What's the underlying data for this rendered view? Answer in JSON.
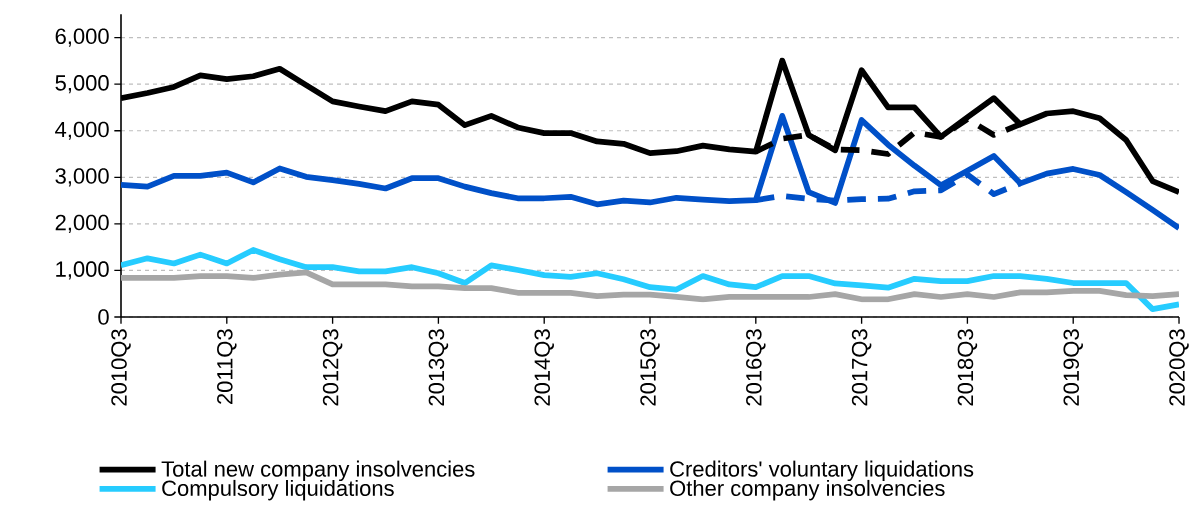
{
  "chart_data": {
    "type": "line",
    "categories": [
      "2010Q3",
      null,
      null,
      null,
      "2011Q3",
      null,
      null,
      null,
      "2012Q3",
      null,
      null,
      null,
      "2013Q3",
      null,
      null,
      null,
      "2014Q3",
      null,
      null,
      null,
      "2015Q3",
      null,
      null,
      null,
      "2016Q3",
      null,
      null,
      null,
      "2017Q3",
      null,
      null,
      null,
      "2018Q3",
      null,
      null,
      null,
      "2019Q3",
      null,
      null,
      null,
      "2020Q3"
    ],
    "series": [
      {
        "name": "Total new company insolvencies",
        "color": "#000000",
        "values": [
          4700,
          4810,
          4940,
          5190,
          5110,
          5170,
          5330,
          4980,
          4630,
          4520,
          4420,
          4630,
          4560,
          4120,
          4320,
          4070,
          3950,
          3950,
          3770,
          3720,
          3520,
          3560,
          3680,
          3600,
          3550,
          5510,
          3910,
          3580,
          5300,
          4500,
          4500,
          3870,
          4290,
          4700,
          4140,
          4370,
          4420,
          4270,
          3800,
          2920,
          2680
        ]
      },
      {
        "name": "Creditors' voluntary liquidations",
        "color": "#0050c8",
        "values": [
          2840,
          2800,
          3030,
          3030,
          3100,
          2890,
          3190,
          3010,
          2940,
          2860,
          2760,
          2980,
          2980,
          2800,
          2660,
          2550,
          2550,
          2580,
          2420,
          2500,
          2460,
          2560,
          2520,
          2490,
          2510,
          4320,
          2680,
          2450,
          4230,
          3700,
          3250,
          2830,
          3140,
          3460,
          2870,
          3080,
          3180,
          3050,
          2680,
          2300,
          1910
        ]
      },
      {
        "name": "Compulsory liquidations",
        "color": "#26ccff",
        "values": [
          1110,
          1260,
          1150,
          1340,
          1150,
          1440,
          1240,
          1070,
          1070,
          980,
          980,
          1070,
          940,
          730,
          1110,
          1010,
          900,
          860,
          940,
          810,
          640,
          590,
          880,
          700,
          640,
          880,
          880,
          720,
          680,
          630,
          820,
          770,
          770,
          880,
          880,
          820,
          730,
          730,
          730,
          170,
          270
        ]
      },
      {
        "name": "Other company insolvencies",
        "color": "#a6a6a6",
        "values": [
          840,
          840,
          840,
          880,
          880,
          840,
          910,
          960,
          700,
          700,
          700,
          660,
          660,
          620,
          620,
          520,
          520,
          520,
          450,
          480,
          480,
          430,
          380,
          430,
          430,
          430,
          430,
          490,
          380,
          380,
          490,
          430,
          490,
          430,
          530,
          530,
          560,
          560,
          470,
          450,
          490
        ]
      },
      {
        "color": "#000000",
        "line_style": "dashed",
        "values": [
          null,
          null,
          null,
          null,
          null,
          null,
          null,
          null,
          null,
          null,
          null,
          null,
          null,
          null,
          null,
          null,
          null,
          null,
          null,
          null,
          null,
          null,
          null,
          null,
          3550,
          3830,
          3910,
          3600,
          3580,
          3500,
          3960,
          3870,
          4250,
          3910,
          4140,
          null,
          null,
          null,
          null,
          null,
          null
        ]
      },
      {
        "color": "#0050c8",
        "line_style": "dashed",
        "values": [
          null,
          null,
          null,
          null,
          null,
          null,
          null,
          null,
          null,
          null,
          null,
          null,
          null,
          null,
          null,
          null,
          null,
          null,
          null,
          null,
          null,
          null,
          null,
          null,
          2510,
          2600,
          2540,
          2500,
          2530,
          2540,
          2700,
          2720,
          3060,
          2640,
          2870,
          null,
          null,
          null,
          null,
          null,
          null
        ]
      }
    ],
    "ylim": [
      0,
      6500
    ],
    "yticks": [
      0,
      {
        "value": 1000,
        "label": "1,000"
      },
      {
        "value": 2000,
        "label": "2,000"
      },
      {
        "value": 3000,
        "label": "3,000"
      },
      {
        "value": 4000,
        "label": "4,000"
      },
      {
        "value": 5000,
        "label": "5,000"
      },
      {
        "value": 6000,
        "label": "6,000"
      }
    ],
    "grid": "y",
    "legend": "bottom"
  }
}
